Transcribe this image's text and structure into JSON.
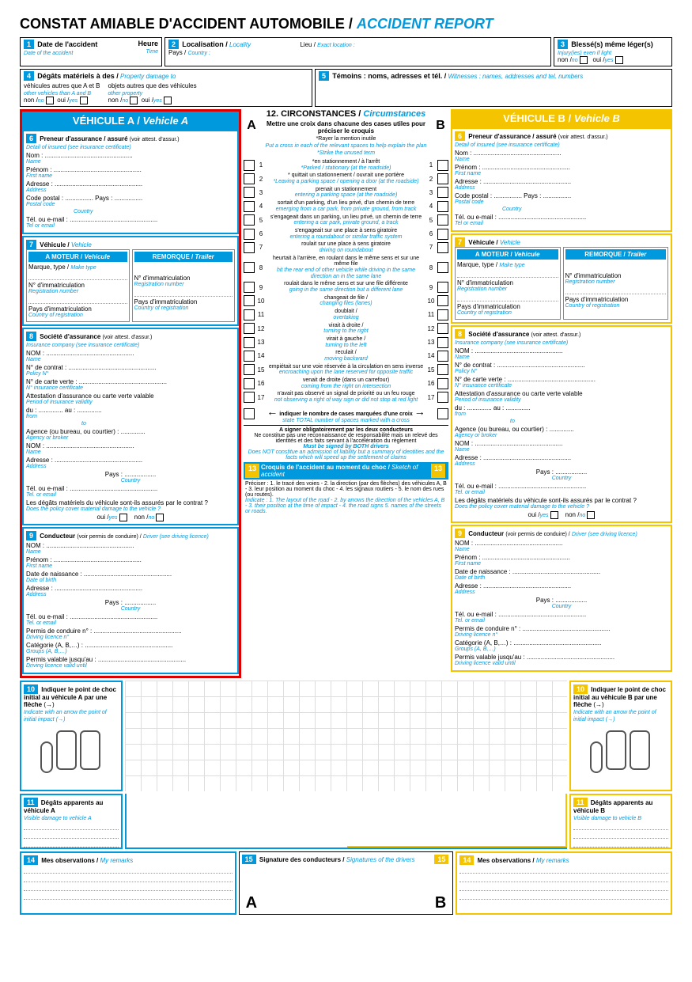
{
  "title": {
    "fr": "CONSTAT AMIABLE D'ACCIDENT AUTOMOBILE /",
    "en": "ACCIDENT REPORT"
  },
  "s1": {
    "num": "1",
    "l": "Date de l'accident",
    "le": "Date of the accident",
    "h": "Heure",
    "he": "Time"
  },
  "s2": {
    "num": "2",
    "l": "Localisation /",
    "le": "Locality",
    "p": "Pays /",
    "pe": "Country :",
    "li": "Lieu /",
    "lie": "Exact location :"
  },
  "s3": {
    "num": "3",
    "l": "Blessé(s) même léger(s)",
    "le": "Injury(ies) even if light",
    "n": "non /",
    "ne": "no",
    "o": "oui /",
    "oe": "yes"
  },
  "s4": {
    "num": "4",
    "l": "Dégâts matériels à des /",
    "le": "Property damage to",
    "v1": "véhicules autres que A et B",
    "v1e": "other vehicles than A and B",
    "v2": "objets autres que des véhicules",
    "v2e": "other property",
    "n": "non /",
    "ne": "no",
    "o": "oui /",
    "oe": "yes"
  },
  "s5": {
    "num": "5",
    "l": "Témoins : noms, adresses et tél. /",
    "le": "Witnesses : names, addresses and tel. numbers"
  },
  "vA": {
    "h": "VÉHICULE A /",
    "he": "Vehicle A"
  },
  "vB": {
    "h": "VÉHICULE B /",
    "he": "Vehicle B"
  },
  "s6": {
    "num": "6",
    "l": "Preneur d'assurance / assuré",
    "lp": "(voir attest. d'assur.)",
    "le": "Detail of insured (see insurance certificate)",
    "nom": "Nom :",
    "nome": "Name",
    "pre": "Prénom :",
    "pree": "First name",
    "adr": "Adresse :",
    "adre": "Address",
    "cp": "Code postal :",
    "cpe": "Postal code",
    "pays": "Pays :",
    "payse": "Country",
    "tel": "Tél. ou e-mail :",
    "tele": "Tel or email"
  },
  "s7": {
    "num": "7",
    "l": "Véhicule /",
    "le": "Vehicle",
    "mot": "A MOTEUR /",
    "mote": "Vehicule",
    "rem": "REMORQUE /",
    "reme": "Trailer",
    "mk": "Marque, type /",
    "mke": "Make type",
    "im": "N° d'immatriculation",
    "ime": "Registration number",
    "pi": "Pays d'immatriculation",
    "pie": "Country of registration"
  },
  "s8": {
    "num": "8",
    "l": "Société d'assurance",
    "lp": "(voir attest. d'assur.)",
    "le": "Insurance company (see insurance certificate)",
    "nom": "NOM :",
    "nome": "Name",
    "nc": "N° de contrat :",
    "nce": "Policy N°",
    "cv": "N° de carte verte :",
    "cve": "N° insurance certificate",
    "at": "Attestation d'assurance ou carte verte valable",
    "ate": "Period of insurance validity",
    "du": "du :",
    "due": "from",
    "au": "au :",
    "aue": "to",
    "ag": "Agence (ou bureau, ou courtier) :",
    "age": "Agency or broker",
    "adr": "Adresse :",
    "adre": "Address",
    "pays": "Pays :",
    "payse": "Country",
    "tel": "Tél. ou e-mail :",
    "tele": "Tel. or email",
    "dm": "Les dégâts matériels du véhicule sont-ils assurés par le contrat ?",
    "dme": "Does the policy cover material damage to the vehicle ?",
    "o": "oui /",
    "oe": "yes",
    "n": "non /",
    "ne": "no"
  },
  "s9": {
    "num": "9",
    "l": "Conducteur",
    "lp": "(voir permis de conduire) /",
    "le": "Driver (see driving licence)",
    "nom": "NOM :",
    "nome": "Name",
    "pre": "Prénom :",
    "pree": "First name",
    "dn": "Date de naissance :",
    "dne": "Date of birth",
    "adr": "Adresse :",
    "adre": "Address",
    "pays": "Pays :",
    "payse": "Country",
    "tel": "Tél. ou e-mail :",
    "tele": "Tel. or email",
    "pc": "Permis de conduire n° :",
    "pce": "Driving licence n°",
    "cat": "Catégorie (A, B,…) :",
    "cate": "Groups (A, B,…)",
    "pv": "Permis valable jusqu'au :",
    "pve": "Driving licence valid until"
  },
  "s12": {
    "num": "12.",
    "l": "CIRCONSTANCES /",
    "le": "Circumstances",
    "h1": "Mettre une croix dans chacune des cases utiles pour préciser le croquis",
    "h1a": "*Rayer la mention inutile",
    "h1e": "Put a cross in each of the relevant spaces to help explain the plan",
    "h1ae": "*Strike the unused term",
    "A": "A",
    "B": "B",
    "items": [
      {
        "n": "1",
        "f": "*en stationnement / à l'arrêt",
        "e": "*Parked / stationary (at the roadside)"
      },
      {
        "n": "2",
        "f": "* quittait un stationnement / ouvrait une portière",
        "e": "*Leaving a parking space / opening a door (at the roadside)"
      },
      {
        "n": "3",
        "f": "prenait un stationnement",
        "e": "entering a parking space (at the roadside)"
      },
      {
        "n": "4",
        "f": "sortait d'un parking, d'un lieu privé, d'un chemin de terre",
        "e": "emerging from a car park, from private ground, from track"
      },
      {
        "n": "5",
        "f": "s'engageait dans un parking, un lieu privé, un chemin de terre",
        "e": "entering a car park, private ground, a track"
      },
      {
        "n": "6",
        "f": "s'engageait sur une place à sens giratoire",
        "e": "entering a roundabout or similar traffic system"
      },
      {
        "n": "7",
        "f": "roulait sur une place à sens giratoire",
        "e": "driving on roundabout"
      },
      {
        "n": "8",
        "f": "heurtait à l'arrière, en roulant dans le même sens et sur une même file",
        "e": "hit the rear end of other vehicle while driving in the same direction an in the same lane"
      },
      {
        "n": "9",
        "f": "roulait dans le même sens et sur une file différente",
        "e": "going in the same direction but a different lane"
      },
      {
        "n": "10",
        "f": "changeait de file /",
        "e": "changing files (lanes)"
      },
      {
        "n": "11",
        "f": "doublait /",
        "e": "overtaking"
      },
      {
        "n": "12",
        "f": "virait à droite /",
        "e": "turning to the right"
      },
      {
        "n": "13",
        "f": "virait à gauche /",
        "e": "turning to the left"
      },
      {
        "n": "14",
        "f": "reculait /",
        "e": "moving backward"
      },
      {
        "n": "15",
        "f": "empiétait sur une voie réservée à la circulation en sens inverse",
        "e": "encroaching upon the lane reserved for opposite traffic"
      },
      {
        "n": "16",
        "f": "venait de droite (dans un carrefour)",
        "e": "coming from the right on intersection"
      },
      {
        "n": "17",
        "f": "n'avait pas observé un signal de priorité ou un feu rouge",
        "e": "not observing a right of way sign or did not stop at red light"
      }
    ],
    "ind": "indiquer le nombre de cases marquées d'une croix",
    "inde": "state TOTAL number of spaces marked with a cross",
    "sign": "A signer obligatoirement par les deux conducteurs",
    "sign2": "Ne constitue pas une reconnaissance de responsabilité mais un relevé des identités et des faits servant à l'accélération du règlement",
    "signe": "Must be signed by BOTH drivers",
    "sign2e": "Does NOT constitue an admission of liability but a summary of identities and the facts which will speed up the settlement of claims"
  },
  "s13": {
    "num": "13",
    "l": "Croquis de l'accident au moment du choc /",
    "le": "Sketch of accident",
    "p": "Préciser : 1. le tracé des voies - 2. la direction (par des flèches) des véhicules A, B - 3. leur position au moment du choc - 4. les signaux routiers - 5. le nom des rues (ou routes).",
    "pe": "Indicate : 1. The layout of the road - 2. by arrows the direction of the vehicles A, B - 3. their position at the time of impact - 4. the road signs 5. names of the streets or roads."
  },
  "s10": {
    "num": "10",
    "lA": "Indiquer le point de choc initial au véhicule A par une flèche",
    "lB": "Indiquer le point de choc initial au véhicule B par une flèche",
    "le": "Indicate with an arrow the point of initial impact",
    "arr": "(→)"
  },
  "s11": {
    "num": "11",
    "lA": "Dégâts apparents au véhicule A",
    "lB": "Dégâts apparents au véhicule B",
    "leA": "Visible damage to vehicle A",
    "leB": "Visible damage to vehicle B"
  },
  "s14": {
    "num": "14",
    "l": "Mes observations /",
    "le": "My remarks"
  },
  "s15": {
    "num": "15",
    "l": "Signature des conducteurs /",
    "le": "Signatures of the drivers",
    "A": "A",
    "B": "B"
  }
}
